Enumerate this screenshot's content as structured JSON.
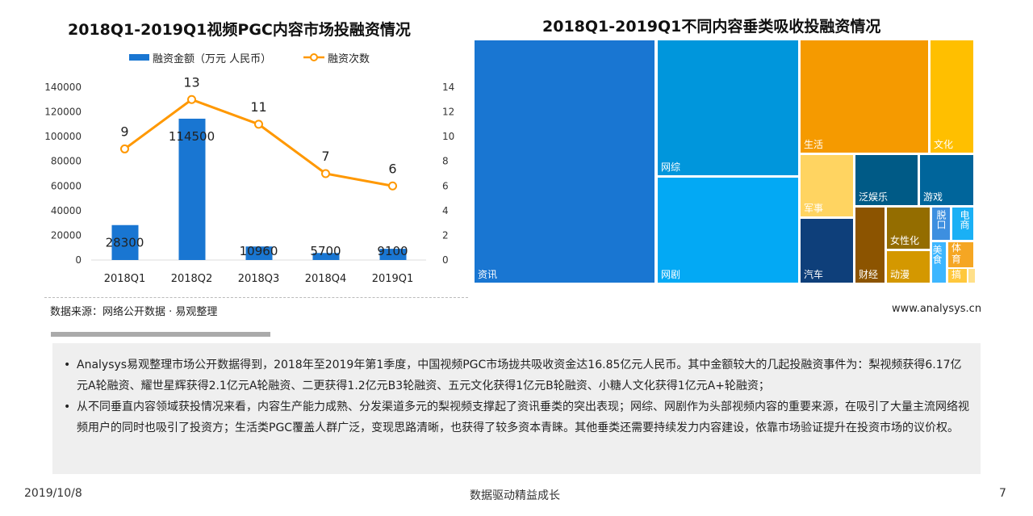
{
  "left_chart": {
    "source": "数据来源：网络公开数据 · 易观整理"
  },
  "chart_data": [
    {
      "type": "bar",
      "title": "2018Q1-2019Q1视频PGC内容市场投融资情况",
      "categories": [
        "2018Q1",
        "2018Q2",
        "2018Q3",
        "2018Q4",
        "2019Q1"
      ],
      "series": [
        {
          "name": "融资金额（万元 人民币）",
          "type": "bar",
          "axis": "left",
          "values": [
            28300,
            114500,
            10960,
            5700,
            9100
          ],
          "color": "#1976d2"
        },
        {
          "name": "融资次数",
          "type": "line",
          "axis": "right",
          "values": [
            9,
            13,
            11,
            7,
            6
          ],
          "color": "#ff9800"
        }
      ],
      "ylim_left": [
        0,
        140000
      ],
      "ylim_right": [
        0,
        14
      ],
      "yticks_left": [
        "0",
        "20000",
        "40000",
        "60000",
        "80000",
        "100000",
        "120000",
        "140000"
      ],
      "yticks_right": [
        "0",
        "2",
        "4",
        "6",
        "8",
        "10",
        "12",
        "14"
      ],
      "legend": "top"
    },
    {
      "type": "treemap",
      "title": "2018Q1-2019Q1不同内容垂类吸收投融资情况",
      "labels": [
        "资讯",
        "网综",
        "网剧",
        "生活",
        "文化",
        "军事",
        "泛娱乐",
        "游戏",
        "汽车",
        "财经",
        "女性化",
        "动漫",
        "脱口",
        "电商",
        "美食",
        "体育",
        "搞"
      ]
    }
  ],
  "site": "www.analysys.cn",
  "notes": [
    "Analysys易观整理市场公开数据得到，2018年至2019年第1季度，中国视频PGC市场拢共吸收资金达16.85亿元人民币。其中金额较大的几起投融资事件为：梨视频获得6.17亿元A轮融资、耀世星辉获得2.1亿元A轮融资、二更获得1.2亿元B3轮融资、五元文化获得1亿元B轮融资、小糖人文化获得1亿元A+轮融资；",
    "从不同垂直内容领域获投情况来看，内容生产能力成熟、分发渠道多元的梨视频支撑起了资讯垂类的突出表现；网综、网剧作为头部视频内容的重要来源，在吸引了大量主流网络视频用户的同时也吸引了投资方；生活类PGC覆盖人群广泛，变现思路清晰，也获得了较多资本青睐。其他垂类还需要持续发力内容建设，依靠市场验证提升在投资市场的议价权。"
  ],
  "footer": {
    "date": "2019/10/8",
    "slogan": "数据驱动精益成长",
    "page": "7"
  }
}
